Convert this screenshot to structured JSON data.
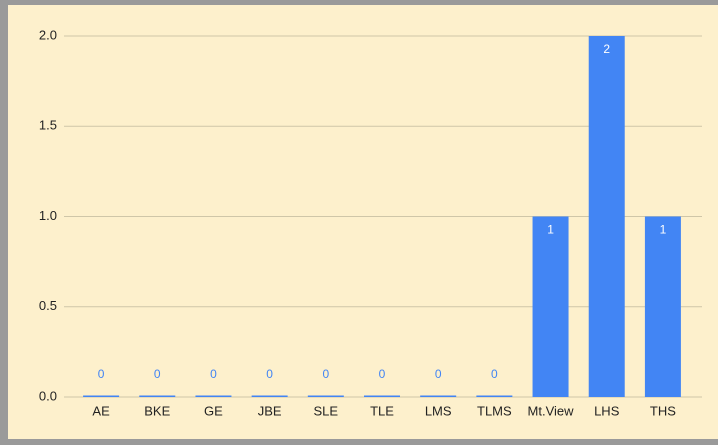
{
  "chart_data": {
    "type": "bar",
    "categories": [
      "AE",
      "BKE",
      "GE",
      "JBE",
      "SLE",
      "TLE",
      "LMS",
      "TLMS",
      "Mt.View",
      "LHS",
      "THS"
    ],
    "values": [
      0,
      0,
      0,
      0,
      0,
      0,
      0,
      0,
      1,
      2,
      1
    ],
    "color": "#4285f4",
    "ylim": [
      0,
      2
    ],
    "yticks": [
      {
        "value": 0,
        "label": "0.0"
      },
      {
        "value": 0.5,
        "label": "0.5"
      },
      {
        "value": 1,
        "label": "1.0"
      },
      {
        "value": 1.5,
        "label": "1.5"
      },
      {
        "value": 2,
        "label": "2.0"
      }
    ],
    "grid": true
  }
}
